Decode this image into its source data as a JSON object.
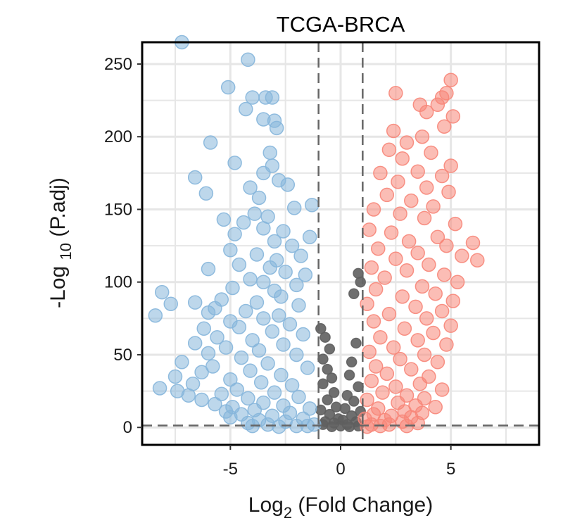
{
  "chart_data": {
    "type": "scatter",
    "subtype": "volcano",
    "title": "TCGA-BRCA",
    "xlabel": {
      "base": "Log",
      "subscript": "2",
      "rest": " (Fold Change)"
    },
    "ylabel": {
      "base": "-Log ",
      "subscript": "10",
      "rest": " (P.adj)"
    },
    "xlim": [
      -9,
      9
    ],
    "ylim": [
      -12,
      265
    ],
    "x_ticks": [
      -5,
      0,
      5
    ],
    "x_tick_labels": [
      "-5",
      "0",
      "5"
    ],
    "y_ticks": [
      0,
      50,
      100,
      150,
      200,
      250
    ],
    "y_tick_labels": [
      "0",
      "50",
      "100",
      "150",
      "200",
      "250"
    ],
    "grid": true,
    "thresholds": {
      "logfc": [
        -1,
        1
      ],
      "y": 1.3
    },
    "colors": {
      "down": "#86b6db",
      "not_significant": "#5f5f5f",
      "up": "#f78679",
      "threshold_line": "#666666",
      "grid": "#e6e6e6"
    },
    "series": [
      {
        "key": "down",
        "points": [
          [
            -7.2,
            265
          ],
          [
            -4.2,
            253
          ],
          [
            -5.1,
            234
          ],
          [
            -4.0,
            227
          ],
          [
            -3.4,
            227
          ],
          [
            -3.1,
            227
          ],
          [
            -4.3,
            219
          ],
          [
            -3.5,
            212
          ],
          [
            -3.0,
            211
          ],
          [
            -2.9,
            206
          ],
          [
            -5.9,
            196
          ],
          [
            -3.2,
            189
          ],
          [
            -3.1,
            180
          ],
          [
            -4.8,
            182
          ],
          [
            -3.5,
            175
          ],
          [
            -6.6,
            172
          ],
          [
            -2.8,
            170
          ],
          [
            -2.4,
            167
          ],
          [
            -6.1,
            161
          ],
          [
            -4.1,
            165
          ],
          [
            -3.7,
            158
          ],
          [
            -1.3,
            153
          ],
          [
            -2.1,
            151
          ],
          [
            -3.9,
            147
          ],
          [
            -3.3,
            145
          ],
          [
            -5.3,
            143
          ],
          [
            -4.4,
            141
          ],
          [
            -3.5,
            137
          ],
          [
            -2.6,
            135
          ],
          [
            -4.8,
            133
          ],
          [
            -1.4,
            131
          ],
          [
            -3.0,
            128
          ],
          [
            -2.2,
            125
          ],
          [
            -5.0,
            122
          ],
          [
            -3.8,
            119
          ],
          [
            -1.8,
            118
          ],
          [
            -2.9,
            115
          ],
          [
            -4.6,
            112
          ],
          [
            -3.2,
            110
          ],
          [
            -6.0,
            109
          ],
          [
            -2.5,
            107
          ],
          [
            -1.6,
            105
          ],
          [
            -4.1,
            102
          ],
          [
            -3.5,
            100
          ],
          [
            -2.0,
            98
          ],
          [
            -4.9,
            96
          ],
          [
            -3.0,
            94
          ],
          [
            -8.1,
            93
          ],
          [
            -2.7,
            90
          ],
          [
            -5.4,
            88
          ],
          [
            -3.8,
            86
          ],
          [
            -7.7,
            85
          ],
          [
            -6.6,
            86
          ],
          [
            -1.9,
            84
          ],
          [
            -5.7,
            82
          ],
          [
            -4.3,
            80
          ],
          [
            -6.0,
            79
          ],
          [
            -2.8,
            77
          ],
          [
            -8.4,
            77
          ],
          [
            -3.5,
            75
          ],
          [
            -5.0,
            73
          ],
          [
            -2.3,
            71
          ],
          [
            -4.6,
            69
          ],
          [
            -6.2,
            68
          ],
          [
            -3.1,
            66
          ],
          [
            -1.7,
            64
          ],
          [
            -5.6,
            62
          ],
          [
            -4.0,
            60
          ],
          [
            -6.6,
            58
          ],
          [
            -2.6,
            57
          ],
          [
            -5.2,
            55
          ],
          [
            -3.7,
            53
          ],
          [
            -6.0,
            51
          ],
          [
            -2.0,
            50
          ],
          [
            -4.5,
            48
          ],
          [
            -7.2,
            45
          ],
          [
            -3.3,
            44
          ],
          [
            -5.8,
            42
          ],
          [
            -1.5,
            41
          ],
          [
            -4.1,
            39
          ],
          [
            -6.3,
            38
          ],
          [
            -2.7,
            36
          ],
          [
            -7.5,
            35
          ],
          [
            -5.0,
            33
          ],
          [
            -3.6,
            31
          ],
          [
            -6.7,
            30
          ],
          [
            -2.2,
            29
          ],
          [
            -8.2,
            27
          ],
          [
            -4.7,
            26
          ],
          [
            -7.4,
            25
          ],
          [
            -3.0,
            24
          ],
          [
            -5.4,
            23
          ],
          [
            -6.9,
            22
          ],
          [
            -1.9,
            21
          ],
          [
            -4.2,
            20
          ],
          [
            -6.3,
            19
          ],
          [
            -3.5,
            17
          ],
          [
            -5.7,
            16
          ],
          [
            -2.6,
            15
          ],
          [
            -4.9,
            14
          ],
          [
            -1.4,
            13
          ],
          [
            -3.9,
            12
          ],
          [
            -5.2,
            11
          ],
          [
            -2.3,
            10
          ],
          [
            -4.5,
            9
          ],
          [
            -3.1,
            8
          ],
          [
            -5.0,
            7
          ],
          [
            -1.7,
            6
          ],
          [
            -3.7,
            5
          ],
          [
            -2.5,
            4
          ],
          [
            -4.2,
            3
          ],
          [
            -1.2,
            2
          ],
          [
            -3.3,
            2
          ],
          [
            -2.0,
            1
          ],
          [
            -1.5,
            1
          ],
          [
            -4.0,
            1
          ],
          [
            -2.8,
            0.5
          ]
        ]
      },
      {
        "key": "not_significant",
        "points": [
          [
            -0.9,
            68
          ],
          [
            -0.7,
            62
          ],
          [
            -0.5,
            54
          ],
          [
            0.8,
            106
          ],
          [
            0.9,
            100
          ],
          [
            0.6,
            92
          ],
          [
            -0.8,
            47
          ],
          [
            0.7,
            58
          ],
          [
            -0.6,
            40
          ],
          [
            0.5,
            45
          ],
          [
            -0.4,
            34
          ],
          [
            0.4,
            36
          ],
          [
            -0.8,
            30
          ],
          [
            0.8,
            28
          ],
          [
            -0.3,
            24
          ],
          [
            0.3,
            22
          ],
          [
            -0.6,
            19
          ],
          [
            0.6,
            18
          ],
          [
            -0.2,
            14
          ],
          [
            0.2,
            13
          ],
          [
            -0.9,
            12
          ],
          [
            0.9,
            11
          ],
          [
            -0.5,
            9
          ],
          [
            0.5,
            8
          ],
          [
            -0.1,
            6
          ],
          [
            0.1,
            5
          ],
          [
            -0.7,
            4
          ],
          [
            0.7,
            4
          ],
          [
            -0.3,
            3
          ],
          [
            0.3,
            2
          ],
          [
            -0.8,
            2
          ],
          [
            0.8,
            1
          ],
          [
            0.0,
            1
          ],
          [
            -0.4,
            0.5
          ],
          [
            0.4,
            0.5
          ]
        ]
      },
      {
        "key": "up",
        "points": [
          [
            5.0,
            239
          ],
          [
            4.8,
            230
          ],
          [
            4.6,
            227
          ],
          [
            2.5,
            230
          ],
          [
            4.4,
            222
          ],
          [
            3.6,
            222
          ],
          [
            5.1,
            214
          ],
          [
            3.9,
            217
          ],
          [
            4.7,
            207
          ],
          [
            2.4,
            204
          ],
          [
            3.7,
            200
          ],
          [
            3.0,
            196
          ],
          [
            2.2,
            191
          ],
          [
            4.1,
            189
          ],
          [
            2.8,
            185
          ],
          [
            5.0,
            180
          ],
          [
            3.5,
            176
          ],
          [
            1.8,
            175
          ],
          [
            4.6,
            173
          ],
          [
            2.6,
            169
          ],
          [
            3.9,
            165
          ],
          [
            4.9,
            162
          ],
          [
            2.1,
            160
          ],
          [
            3.2,
            156
          ],
          [
            4.2,
            152
          ],
          [
            1.5,
            150
          ],
          [
            2.7,
            147
          ],
          [
            3.8,
            144
          ],
          [
            5.2,
            140
          ],
          [
            1.3,
            136
          ],
          [
            2.3,
            134
          ],
          [
            4.4,
            131
          ],
          [
            3.1,
            128
          ],
          [
            6.0,
            127
          ],
          [
            4.8,
            125
          ],
          [
            1.7,
            123
          ],
          [
            3.5,
            120
          ],
          [
            5.5,
            118
          ],
          [
            2.5,
            116
          ],
          [
            6.2,
            115
          ],
          [
            4.0,
            112
          ],
          [
            1.4,
            110
          ],
          [
            3.0,
            108
          ],
          [
            4.7,
            105
          ],
          [
            2.0,
            103
          ],
          [
            5.3,
            100
          ],
          [
            3.7,
            97
          ],
          [
            1.6,
            95
          ],
          [
            4.3,
            92
          ],
          [
            2.8,
            90
          ],
          [
            5.1,
            87
          ],
          [
            1.2,
            85
          ],
          [
            3.4,
            83
          ],
          [
            4.6,
            80
          ],
          [
            2.2,
            78
          ],
          [
            3.9,
            75
          ],
          [
            1.5,
            73
          ],
          [
            5.0,
            70
          ],
          [
            2.9,
            68
          ],
          [
            4.2,
            65
          ],
          [
            1.8,
            62
          ],
          [
            3.5,
            60
          ],
          [
            4.8,
            57
          ],
          [
            2.4,
            55
          ],
          [
            1.3,
            52
          ],
          [
            3.8,
            50
          ],
          [
            2.7,
            47
          ],
          [
            4.4,
            45
          ],
          [
            1.6,
            42
          ],
          [
            3.2,
            40
          ],
          [
            2.1,
            37
          ],
          [
            4.0,
            35
          ],
          [
            1.4,
            32
          ],
          [
            3.6,
            30
          ],
          [
            2.5,
            28
          ],
          [
            4.6,
            26
          ],
          [
            1.9,
            24
          ],
          [
            3.0,
            22
          ],
          [
            3.8,
            20
          ],
          [
            1.2,
            19
          ],
          [
            2.6,
            17
          ],
          [
            3.4,
            15
          ],
          [
            4.3,
            14
          ],
          [
            1.7,
            13
          ],
          [
            2.9,
            11
          ],
          [
            3.7,
            10
          ],
          [
            1.5,
            9
          ],
          [
            2.3,
            8
          ],
          [
            3.2,
            7
          ],
          [
            1.1,
            6
          ],
          [
            2.0,
            5
          ],
          [
            2.8,
            4
          ],
          [
            3.5,
            3
          ],
          [
            1.4,
            2
          ],
          [
            2.2,
            2
          ],
          [
            1.8,
            1
          ],
          [
            3.0,
            1
          ],
          [
            1.2,
            0.5
          ]
        ]
      }
    ]
  }
}
